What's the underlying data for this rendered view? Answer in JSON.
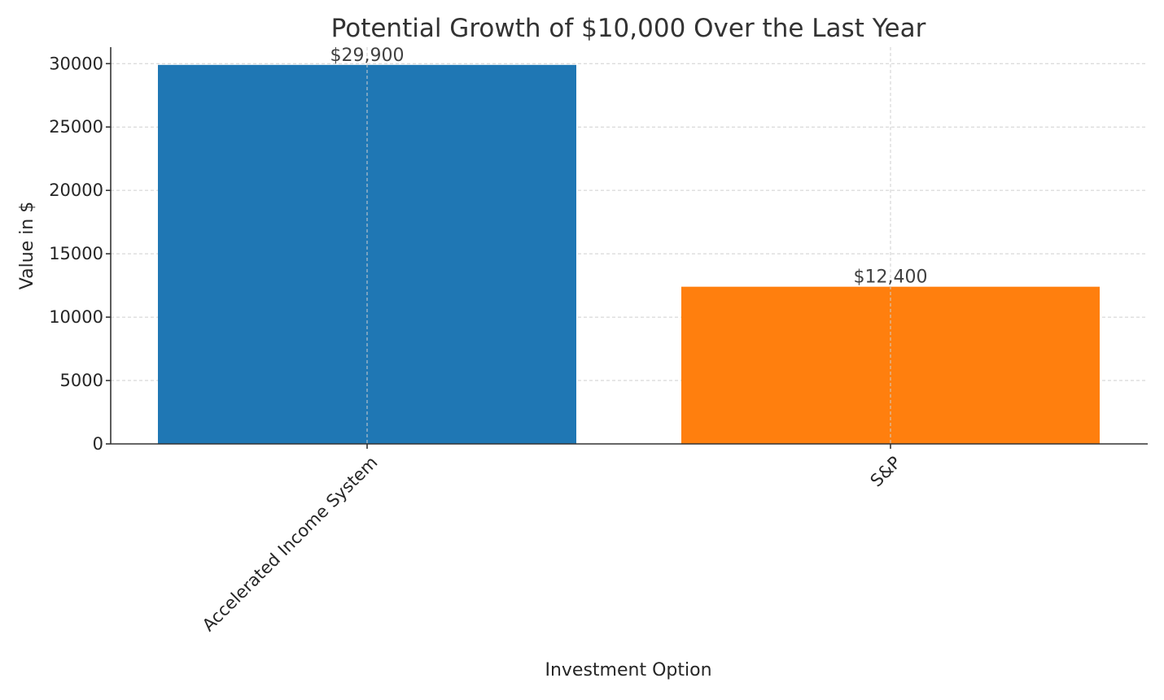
{
  "chart_data": {
    "type": "bar",
    "title": "Potential Growth of $10,000 Over the Last Year",
    "xlabel": "Investment Option",
    "ylabel": "Value in $",
    "categories": [
      "Accelerated Income System",
      "S&P"
    ],
    "values": [
      29900,
      12400
    ],
    "data_labels": [
      "$29,900",
      "$12,400"
    ],
    "colors": [
      "#1f77b4",
      "#ff7f0e"
    ],
    "ylim": [
      0,
      31300
    ],
    "yticks": [
      0,
      5000,
      10000,
      15000,
      20000,
      25000,
      30000
    ],
    "ytick_labels": [
      "0",
      "5000",
      "10000",
      "15000",
      "20000",
      "25000",
      "30000"
    ],
    "grid": true,
    "legend": "none"
  }
}
